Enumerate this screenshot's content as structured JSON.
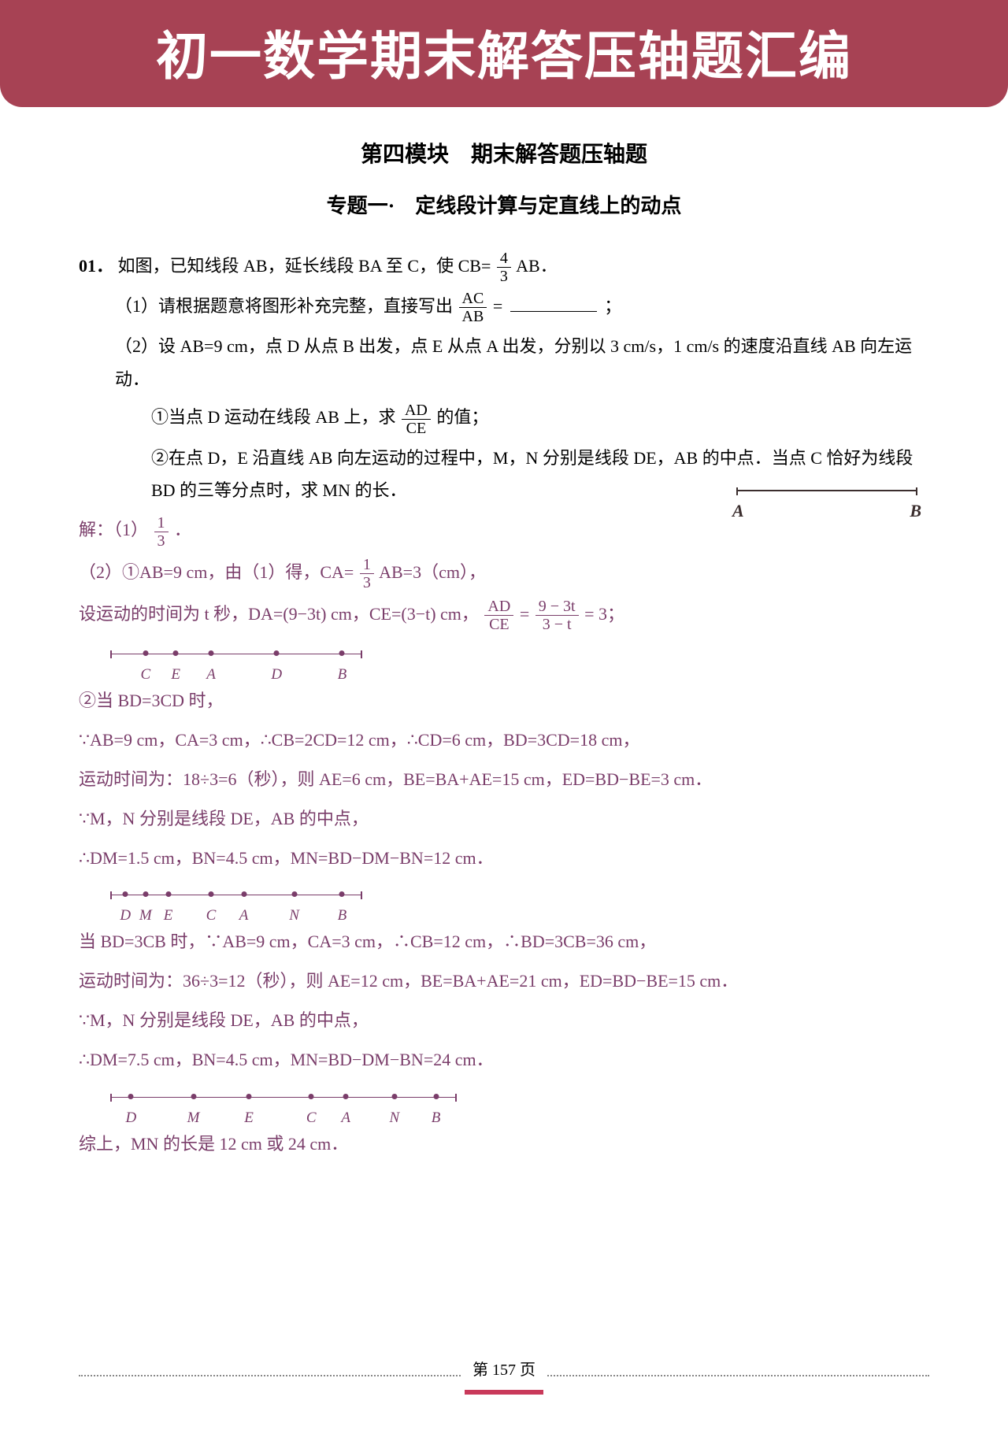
{
  "banner": {
    "title": "初一数学期末解答压轴题汇编",
    "bg_color": "#a74254",
    "text_color": "#ffffff"
  },
  "headings": {
    "module": "第四模块　期末解答题压轴题",
    "topic": "专题一·　定线段计算与定直线上的动点"
  },
  "question": {
    "number": "01．",
    "stem": "如图，已知线段 AB，延长线段 BA 至 C，使 CB=",
    "stem_tail": " AB．",
    "frac_cb": {
      "n": "4",
      "d": "3"
    },
    "p1_a": "（1）请根据题意将图形补充完整，直接写出",
    "p1_frac": {
      "n": "AC",
      "d": "AB"
    },
    "p1_b": " = ",
    "p1_c": "；",
    "p2": "（2）设 AB=9 cm，点 D 从点 B 出发，点 E 从点 A 出发，分别以 3 cm/s，1 cm/s 的速度沿直线 AB 向左运动．",
    "p2a_a": "①当点 D 运动在线段 AB 上，求",
    "p2a_frac": {
      "n": "AD",
      "d": "CE"
    },
    "p2a_b": " 的值；",
    "p2b": "②在点 D，E 沿直线 AB 向左运动的过程中，M，N 分别是线段 DE，AB 的中点．当点 C 恰好为线段 BD 的三等分点时，求 MN 的长．",
    "fig_labels": {
      "A": "A",
      "B": "B"
    }
  },
  "solution": {
    "color": "#7a3d6a",
    "s1_a": "解：（1）",
    "s1_frac": {
      "n": "1",
      "d": "3"
    },
    "s1_b": "．",
    "s2_a": "（2）①AB=9 cm，由（1）得，CA=",
    "s2_frac": {
      "n": "1",
      "d": "3"
    },
    "s2_b": " AB=3（cm），",
    "s3_a": "设运动的时间为 t 秒，DA=(9−3t) cm，CE=(3−t) cm，",
    "s3_frac1": {
      "n": "AD",
      "d": "CE"
    },
    "s3_mid": " = ",
    "s3_frac2": {
      "n": "9 − 3t",
      "d": "3 − t"
    },
    "s3_b": " = 3；",
    "line1_labels": [
      "C",
      "E",
      "A",
      "D",
      "B"
    ],
    "line1_positions": [
      14,
      26,
      40,
      66,
      92
    ],
    "s4": "②当 BD=3CD 时，",
    "s5": "∵AB=9 cm，CA=3 cm，∴CB=2CD=12 cm，∴CD=6 cm，BD=3CD=18 cm，",
    "s6": "运动时间为：18÷3=6（秒），则 AE=6 cm，BE=BA+AE=15 cm，ED=BD−BE=3 cm．",
    "s7": "∵M，N 分别是线段 DE，AB 的中点，",
    "s8": "∴DM=1.5 cm，BN=4.5 cm，MN=BD−DM−BN=12 cm．",
    "line2_labels": [
      "D",
      "M",
      "E",
      "C",
      "A",
      "N",
      "B"
    ],
    "line2_positions": [
      6,
      14,
      23,
      40,
      53,
      73,
      92
    ],
    "s9": "当 BD=3CB 时，∵AB=9 cm，CA=3 cm，∴CB=12 cm，∴BD=3CB=36 cm，",
    "s10": "运动时间为：36÷3=12（秒），则 AE=12 cm，BE=BA+AE=21 cm，ED=BD−BE=15 cm．",
    "s11": "∵M，N 分别是线段 DE，AB 的中点，",
    "s12": "∴DM=7.5 cm，BN=4.5 cm，MN=BD−DM−BN=24 cm．",
    "line3_labels": [
      "D",
      "M",
      "E",
      "C",
      "A",
      "N",
      "B"
    ],
    "line3_positions": [
      6,
      24,
      40,
      58,
      68,
      82,
      94
    ],
    "s13": "综上，MN 的长是 12 cm 或 24 cm．"
  },
  "footer": {
    "text": "第 157 页",
    "accent": "#c9395a"
  }
}
